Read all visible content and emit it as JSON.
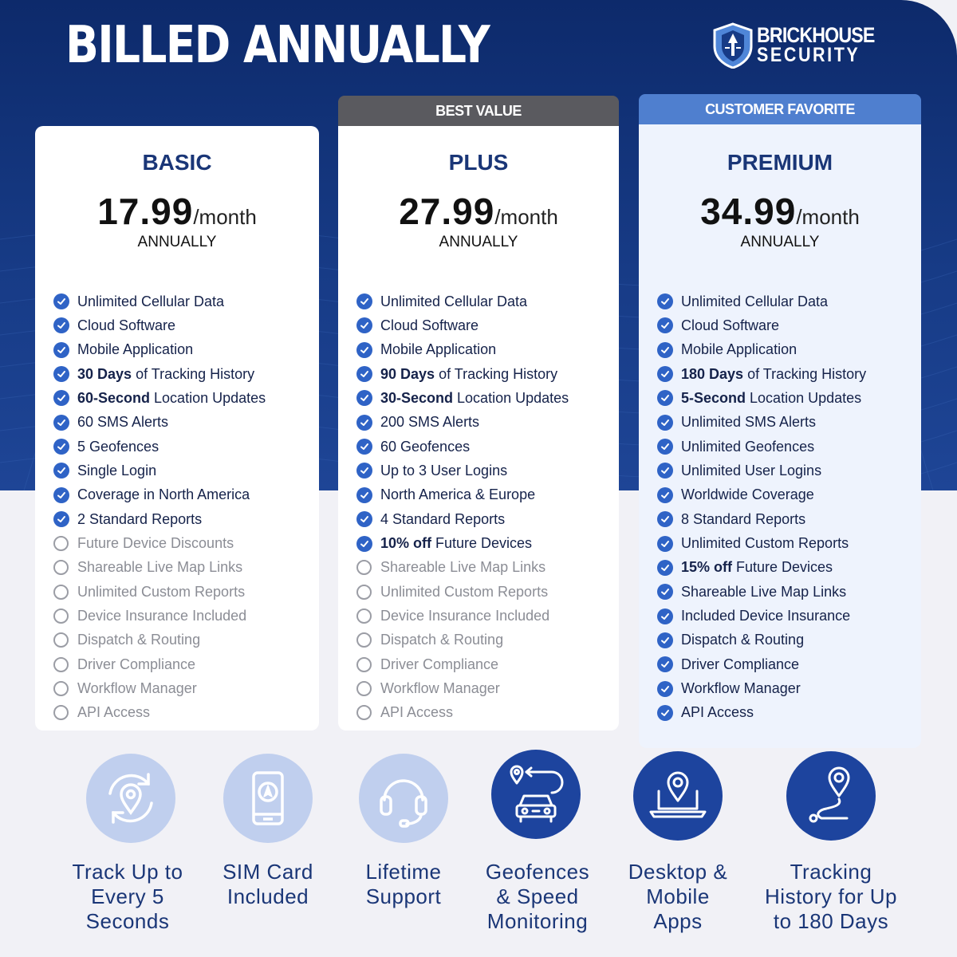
{
  "header": {
    "title": "BILLED ANNUALLY"
  },
  "brand": {
    "line1": "BRICKHOUSE",
    "line2": "SECURITY"
  },
  "colors": {
    "navy": "#173b86",
    "accent": "#2f63c6",
    "premium_tag": "#4f7fcf",
    "best_value_tag": "#5a5a5f"
  },
  "plans": [
    {
      "name": "BASIC",
      "tag": "",
      "price": "17.99",
      "per": "/month",
      "billing": "ANNUALLY",
      "features": [
        {
          "on": true,
          "bold": "",
          "text": "Unlimited Cellular Data"
        },
        {
          "on": true,
          "bold": "",
          "text": "Cloud Software"
        },
        {
          "on": true,
          "bold": "",
          "text": "Mobile Application"
        },
        {
          "on": true,
          "bold": "30 Days",
          "text": " of Tracking History"
        },
        {
          "on": true,
          "bold": "60-Second",
          "text": " Location Updates"
        },
        {
          "on": true,
          "bold": "",
          "text": "60 SMS Alerts"
        },
        {
          "on": true,
          "bold": "",
          "text": "5 Geofences"
        },
        {
          "on": true,
          "bold": "",
          "text": "Single Login"
        },
        {
          "on": true,
          "bold": "",
          "text": "Coverage in North America"
        },
        {
          "on": true,
          "bold": "",
          "text": "2 Standard Reports"
        },
        {
          "on": false,
          "bold": "",
          "text": "Future Device Discounts"
        },
        {
          "on": false,
          "bold": "",
          "text": "Shareable Live Map Links"
        },
        {
          "on": false,
          "bold": "",
          "text": "Unlimited Custom Reports"
        },
        {
          "on": false,
          "bold": "",
          "text": "Device Insurance Included"
        },
        {
          "on": false,
          "bold": "",
          "text": "Dispatch & Routing"
        },
        {
          "on": false,
          "bold": "",
          "text": "Driver Compliance"
        },
        {
          "on": false,
          "bold": "",
          "text": "Workflow Manager"
        },
        {
          "on": false,
          "bold": "",
          "text": "API Access"
        }
      ]
    },
    {
      "name": "PLUS",
      "tag": "BEST VALUE",
      "price": "27.99",
      "per": "/month",
      "billing": "ANNUALLY",
      "features": [
        {
          "on": true,
          "bold": "",
          "text": "Unlimited Cellular Data"
        },
        {
          "on": true,
          "bold": "",
          "text": "Cloud Software"
        },
        {
          "on": true,
          "bold": "",
          "text": "Mobile Application"
        },
        {
          "on": true,
          "bold": "90 Days",
          "text": " of Tracking History"
        },
        {
          "on": true,
          "bold": "30-Second",
          "text": " Location Updates"
        },
        {
          "on": true,
          "bold": "",
          "text": "200 SMS Alerts"
        },
        {
          "on": true,
          "bold": "",
          "text": "60 Geofences"
        },
        {
          "on": true,
          "bold": "",
          "text": "Up to 3 User Logins"
        },
        {
          "on": true,
          "bold": "",
          "text": "North America & Europe"
        },
        {
          "on": true,
          "bold": "",
          "text": "4 Standard Reports"
        },
        {
          "on": true,
          "bold": "10% off",
          "text": " Future Devices"
        },
        {
          "on": false,
          "bold": "",
          "text": "Shareable Live Map Links"
        },
        {
          "on": false,
          "bold": "",
          "text": "Unlimited Custom Reports"
        },
        {
          "on": false,
          "bold": "",
          "text": "Device Insurance Included"
        },
        {
          "on": false,
          "bold": "",
          "text": "Dispatch & Routing"
        },
        {
          "on": false,
          "bold": "",
          "text": "Driver Compliance"
        },
        {
          "on": false,
          "bold": "",
          "text": "Workflow Manager"
        },
        {
          "on": false,
          "bold": "",
          "text": "API Access"
        }
      ]
    },
    {
      "name": "PREMIUM",
      "tag": "CUSTOMER FAVORITE",
      "price": "34.99",
      "per": "/month",
      "billing": "ANNUALLY",
      "features": [
        {
          "on": true,
          "bold": "",
          "text": "Unlimited Cellular Data"
        },
        {
          "on": true,
          "bold": "",
          "text": "Cloud Software"
        },
        {
          "on": true,
          "bold": "",
          "text": "Mobile Application"
        },
        {
          "on": true,
          "bold": "180 Days",
          "text": " of Tracking History"
        },
        {
          "on": true,
          "bold": "5-Second",
          "text": " Location Updates"
        },
        {
          "on": true,
          "bold": "",
          "text": "Unlimited SMS Alerts"
        },
        {
          "on": true,
          "bold": "",
          "text": "Unlimited Geofences"
        },
        {
          "on": true,
          "bold": "",
          "text": "Unlimited User Logins"
        },
        {
          "on": true,
          "bold": "",
          "text": "Worldwide Coverage"
        },
        {
          "on": true,
          "bold": "",
          "text": "8 Standard Reports"
        },
        {
          "on": true,
          "bold": "",
          "text": "Unlimited Custom Reports"
        },
        {
          "on": true,
          "bold": "15% off",
          "text": " Future Devices"
        },
        {
          "on": true,
          "bold": "",
          "text": "Shareable Live Map Links"
        },
        {
          "on": true,
          "bold": "",
          "text": "Included Device Insurance"
        },
        {
          "on": true,
          "bold": "",
          "text": "Dispatch & Routing"
        },
        {
          "on": true,
          "bold": "",
          "text": "Driver Compliance"
        },
        {
          "on": true,
          "bold": "",
          "text": "Workflow Manager"
        },
        {
          "on": true,
          "bold": "",
          "text": "API Access"
        }
      ]
    }
  ],
  "perks": [
    {
      "icon": "refresh-location-icon",
      "style": "light",
      "lines": [
        "Track Up to",
        "Every 5",
        "Seconds"
      ]
    },
    {
      "icon": "sim-phone-icon",
      "style": "light",
      "lines": [
        "SIM Card",
        "Included"
      ]
    },
    {
      "icon": "headset-icon",
      "style": "light",
      "lines": [
        "Lifetime",
        "Support"
      ]
    },
    {
      "icon": "car-geofence-icon",
      "style": "dark",
      "lines": [
        "Geofences",
        "& Speed",
        "Monitoring"
      ]
    },
    {
      "icon": "laptop-location-icon",
      "style": "dark",
      "lines": [
        "Desktop &",
        "Mobile",
        "Apps"
      ]
    },
    {
      "icon": "route-pin-icon",
      "style": "dark",
      "lines": [
        "Tracking",
        "History for Up",
        "to 180 Days"
      ]
    }
  ]
}
